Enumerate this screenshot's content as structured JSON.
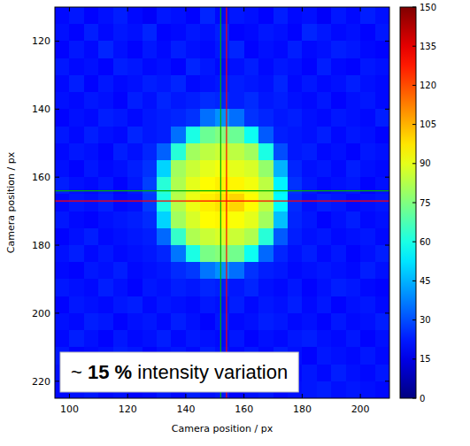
{
  "chart_data": {
    "type": "heatmap",
    "xlabel": "Camera position / px",
    "ylabel": "Camera position / px",
    "annotation": "~ 15 % intensity variation",
    "annotation_bold": "15 %",
    "xlim": [
      95,
      210
    ],
    "ylim": [
      225,
      110
    ],
    "xticks": [
      100,
      120,
      140,
      160,
      180,
      200
    ],
    "yticks": [
      120,
      140,
      160,
      180,
      200,
      220
    ],
    "grid": false,
    "x": [
      97.5,
      102.5,
      107.5,
      112.5,
      117.5,
      122.5,
      127.5,
      132.5,
      137.5,
      142.5,
      147.5,
      152.5,
      157.5,
      162.5,
      167.5,
      172.5,
      177.5,
      182.5,
      187.5,
      192.5,
      197.5,
      202.5,
      207.5
    ],
    "y": [
      112.5,
      117.5,
      122.5,
      127.5,
      132.5,
      137.5,
      142.5,
      147.5,
      152.5,
      157.5,
      162.5,
      167.5,
      172.5,
      177.5,
      182.5,
      187.5,
      192.5,
      197.5,
      202.5,
      207.5,
      212.5,
      217.5,
      222.5
    ],
    "cells": [
      [
        20,
        22,
        19,
        21,
        23,
        20,
        18,
        22,
        21,
        19,
        24,
        20,
        22,
        21,
        19,
        23,
        20,
        21,
        18,
        22,
        20,
        23,
        21
      ],
      [
        21,
        19,
        23,
        20,
        22,
        21,
        24,
        19,
        20,
        22,
        21,
        23,
        19,
        20,
        22,
        21,
        19,
        24,
        22,
        20,
        21,
        19,
        22
      ],
      [
        19,
        22,
        20,
        24,
        21,
        19,
        22,
        20,
        23,
        21,
        20,
        22,
        24,
        19,
        21,
        20,
        23,
        20,
        21,
        23,
        22,
        20,
        19
      ],
      [
        22,
        20,
        21,
        19,
        23,
        22,
        20,
        21,
        19,
        24,
        22,
        20,
        21,
        23,
        20,
        22,
        21,
        19,
        23,
        20,
        19,
        22,
        21
      ],
      [
        20,
        23,
        19,
        22,
        20,
        21,
        23,
        22,
        24,
        20,
        21,
        22,
        23,
        22,
        21,
        24,
        20,
        22,
        20,
        21,
        23,
        21,
        20
      ],
      [
        21,
        20,
        22,
        21,
        19,
        23,
        21,
        24,
        22,
        23,
        25,
        24,
        23,
        25,
        22,
        23,
        21,
        20,
        22,
        19,
        21,
        22,
        20
      ],
      [
        19,
        21,
        20,
        23,
        22,
        20,
        22,
        23,
        24,
        26,
        35,
        40,
        35,
        26,
        24,
        22,
        23,
        21,
        20,
        22,
        21,
        20,
        23
      ],
      [
        22,
        20,
        23,
        21,
        20,
        24,
        22,
        23,
        35,
        60,
        72,
        75,
        72,
        58,
        32,
        23,
        22,
        21,
        23,
        20,
        22,
        21,
        19
      ],
      [
        20,
        22,
        21,
        19,
        23,
        21,
        24,
        33,
        62,
        80,
        84,
        86,
        84,
        80,
        60,
        30,
        22,
        23,
        20,
        21,
        19,
        22,
        21
      ],
      [
        21,
        19,
        22,
        20,
        21,
        23,
        26,
        50,
        80,
        86,
        90,
        92,
        90,
        88,
        78,
        45,
        24,
        21,
        22,
        20,
        23,
        21,
        20
      ],
      [
        23,
        21,
        20,
        22,
        19,
        22,
        28,
        62,
        82,
        90,
        94,
        96,
        95,
        92,
        84,
        55,
        26,
        22,
        20,
        21,
        22,
        19,
        21
      ],
      [
        20,
        22,
        21,
        23,
        20,
        21,
        27,
        60,
        83,
        91,
        96,
        98,
        100,
        94,
        84,
        56,
        25,
        21,
        23,
        22,
        20,
        21,
        22
      ],
      [
        22,
        20,
        19,
        21,
        22,
        23,
        25,
        50,
        80,
        88,
        94,
        95,
        93,
        90,
        80,
        47,
        24,
        22,
        19,
        21,
        23,
        20,
        21
      ],
      [
        19,
        21,
        23,
        20,
        21,
        22,
        23,
        34,
        64,
        82,
        86,
        88,
        86,
        82,
        62,
        32,
        23,
        21,
        22,
        20,
        21,
        22,
        20
      ],
      [
        21,
        23,
        20,
        22,
        20,
        21,
        22,
        24,
        36,
        60,
        74,
        76,
        73,
        58,
        34,
        24,
        21,
        23,
        20,
        22,
        19,
        21,
        23
      ],
      [
        20,
        19,
        22,
        21,
        23,
        20,
        21,
        22,
        25,
        27,
        36,
        40,
        35,
        26,
        23,
        22,
        20,
        21,
        22,
        21,
        20,
        23,
        21
      ],
      [
        22,
        21,
        20,
        23,
        21,
        19,
        22,
        21,
        23,
        22,
        24,
        23,
        22,
        24,
        21,
        20,
        22,
        19,
        21,
        23,
        22,
        20,
        19
      ],
      [
        19,
        22,
        21,
        20,
        22,
        23,
        20,
        22,
        21,
        20,
        22,
        21,
        23,
        20,
        22,
        21,
        23,
        20,
        22,
        19,
        21,
        22,
        20
      ],
      [
        21,
        20,
        23,
        22,
        19,
        21,
        22,
        20,
        23,
        21,
        19,
        22,
        20,
        21,
        23,
        22,
        20,
        21,
        19,
        22,
        20,
        21,
        23
      ],
      [
        20,
        23,
        21,
        19,
        22,
        20,
        21,
        23,
        20,
        22,
        21,
        20,
        22,
        19,
        21,
        20,
        22,
        23,
        21,
        20,
        22,
        19,
        21
      ],
      [
        22,
        19,
        20,
        21,
        23,
        22,
        19,
        21,
        22,
        20,
        23,
        21,
        20,
        22,
        20,
        23,
        21,
        19,
        22,
        21,
        20,
        22,
        20
      ],
      [
        21,
        22,
        19,
        23,
        20,
        21,
        23,
        20,
        21,
        19,
        22,
        20,
        21,
        23,
        19,
        21,
        20,
        22,
        20,
        23,
        21,
        20,
        22
      ],
      [
        20,
        21,
        22,
        20,
        21,
        19,
        20,
        22,
        20,
        23,
        21,
        22,
        19,
        21,
        22,
        20,
        21,
        22,
        23,
        21,
        22,
        21,
        20
      ]
    ],
    "colorbar": {
      "range": [
        0,
        150
      ],
      "ticks": [
        0,
        15,
        30,
        45,
        60,
        75,
        90,
        105,
        120,
        135,
        150
      ]
    },
    "crosshairs": [
      {
        "x": 152,
        "y": 164,
        "color": "#00b000"
      },
      {
        "x": 154,
        "y": 167,
        "color": "#ff0000"
      }
    ]
  }
}
